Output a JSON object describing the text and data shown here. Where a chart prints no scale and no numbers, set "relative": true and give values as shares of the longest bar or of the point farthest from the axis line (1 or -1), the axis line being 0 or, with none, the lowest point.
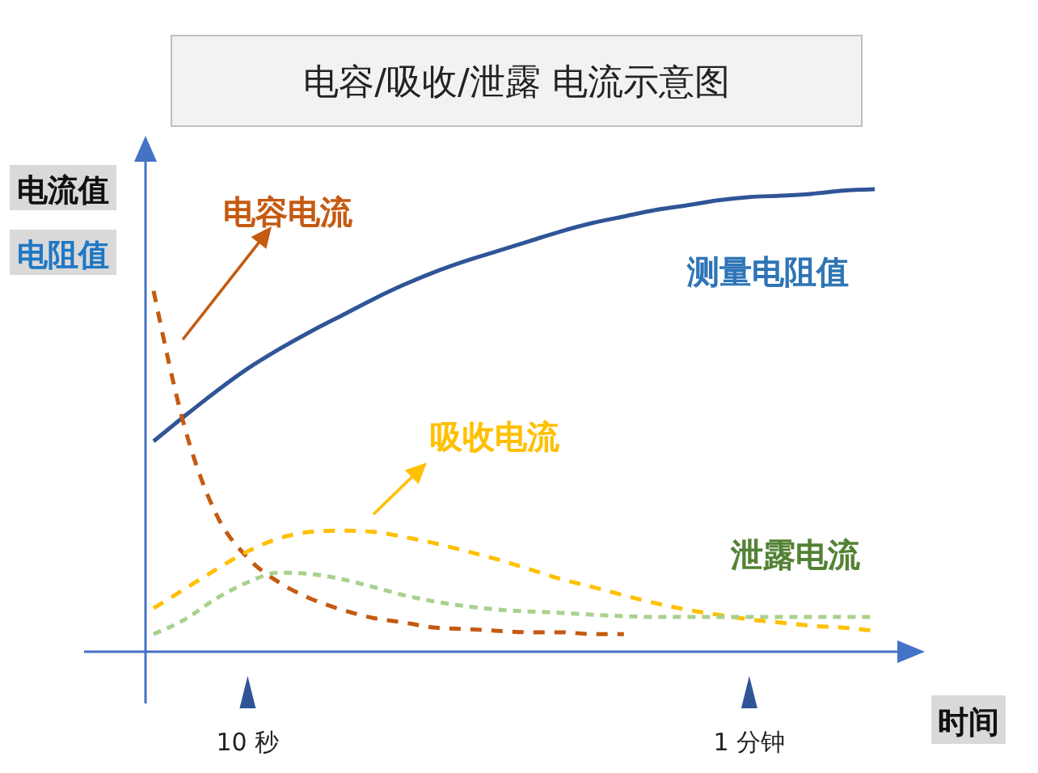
{
  "chart_data": {
    "type": "line",
    "title": "电容/吸收/泄露 电流示意图",
    "ylabel": "电流值",
    "y2label": "电阻值",
    "xlabel": "时间",
    "relative": true,
    "marker": "none",
    "legend": false,
    "categories": [
      null,
      null,
      null,
      "10 秒",
      null,
      null,
      null,
      null,
      null,
      null,
      null,
      null,
      null,
      null,
      null,
      null,
      null,
      null,
      null,
      "1 分钟",
      null,
      null,
      null,
      null
    ],
    "series": [
      {
        "name": "测量电阻值",
        "color": "#2f5597",
        "line_style": "solid",
        "values": [
          0.455,
          0.51,
          0.563,
          0.612,
          0.654,
          0.692,
          0.727,
          0.762,
          0.794,
          0.822,
          0.846,
          0.867,
          0.888,
          0.909,
          0.927,
          0.941,
          0.955,
          0.965,
          0.976,
          0.983,
          0.986,
          0.99,
          0.997,
          1
        ]
      },
      {
        "name": "电容电流",
        "color": "#c55a11",
        "line_style": "dashed",
        "values": [
          0.78,
          0.483,
          0.297,
          0.203,
          0.15,
          0.115,
          0.091,
          0.073,
          0.063,
          0.052,
          0.049,
          0.045,
          0.042,
          0.042,
          0.038,
          0.038,
          null,
          null,
          null,
          null,
          null,
          null,
          null,
          null
        ]
      },
      {
        "name": "吸收电流",
        "color": "#ffc000",
        "line_style": "dashed",
        "values": [
          0.094,
          0.136,
          0.178,
          0.217,
          0.245,
          0.259,
          0.262,
          0.259,
          0.248,
          0.234,
          0.217,
          0.199,
          0.178,
          0.157,
          0.14,
          0.122,
          0.105,
          0.091,
          0.08,
          0.07,
          0.063,
          0.056,
          0.052,
          0.045
        ]
      },
      {
        "name": "泄露电流",
        "color": "#a9d18e",
        "line_style": "dashed",
        "values": [
          0.038,
          0.07,
          0.115,
          0.15,
          0.171,
          0.168,
          0.157,
          0.14,
          0.122,
          0.108,
          0.098,
          0.091,
          0.087,
          0.084,
          0.08,
          0.077,
          0.075,
          0.075,
          0.075,
          0.075,
          0.075,
          0.075,
          0.075,
          0.075
        ]
      }
    ]
  }
}
